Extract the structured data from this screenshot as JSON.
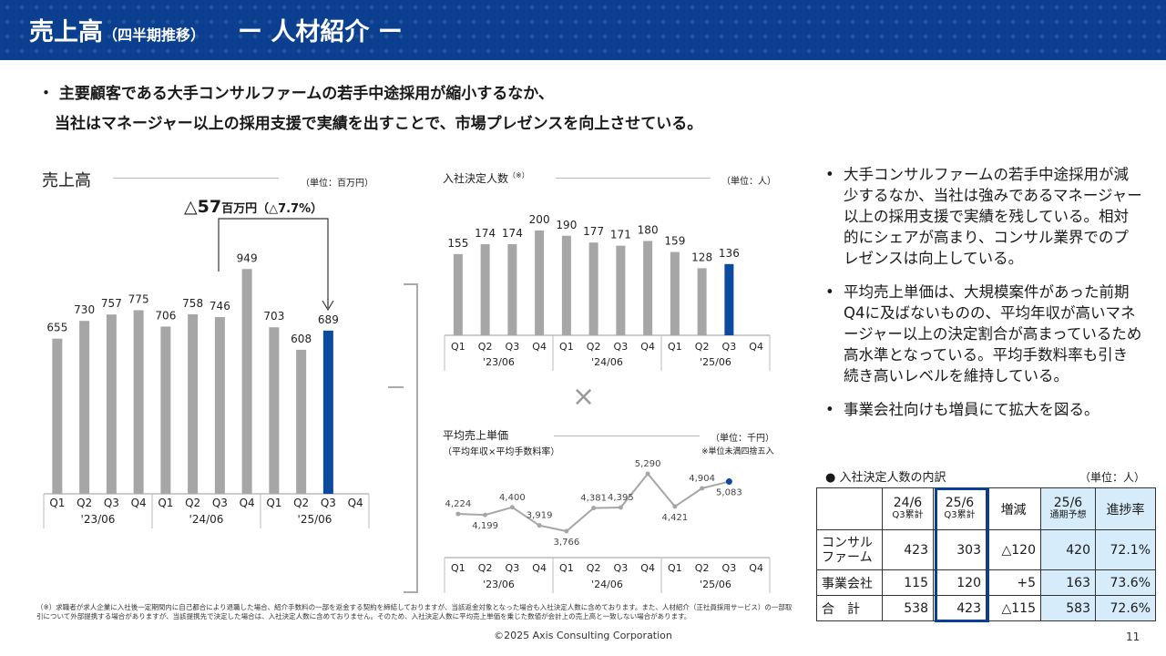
{
  "header": {
    "title": "売上高",
    "subtitle": "（四半期推移）",
    "section": "ー 人材紹介 ー"
  },
  "intro": {
    "line1": "・ 主要顧客である大手コンサルファームの若手中途採用が縮小するなか、",
    "line2": "当社はマネージャー以上の採用支援で実績を出すことで、市場プレゼンスを向上させている。"
  },
  "sales_panel": {
    "title": "売上高",
    "unit": "（単位：百万円）",
    "change_value": "△57",
    "change_unit": "百万円",
    "change_pct": "（△7.7%）"
  },
  "hires_panel": {
    "title": "入社決定人数",
    "note_mark": "（※）",
    "unit": "（単位：人）"
  },
  "multiply_sign": "×",
  "price_panel": {
    "title": "平均売上単価",
    "subtitle": "（平均年収×平均手数料率）",
    "unit": "（単位：千円）",
    "rounding_note": "※単位未満四捨五入"
  },
  "colors": {
    "brand": "#0b3f8f",
    "highlight": "#0c4aa0",
    "bar": "#a6a6a6",
    "table_fill": "#d6ecfb"
  },
  "chart_data": [
    {
      "type": "bar",
      "title": "売上高",
      "categories": [
        "Q1",
        "Q2",
        "Q3",
        "Q4",
        "Q1",
        "Q2",
        "Q3",
        "Q4",
        "Q1",
        "Q2",
        "Q3",
        "Q4"
      ],
      "groups": [
        "'23/06",
        "'24/06",
        "'25/06"
      ],
      "values": [
        655,
        730,
        757,
        775,
        706,
        758,
        746,
        949,
        703,
        608,
        689,
        null
      ],
      "highlight_index": 10,
      "ylim": [
        0,
        1000
      ]
    },
    {
      "type": "bar",
      "title": "入社決定人数",
      "categories": [
        "Q1",
        "Q2",
        "Q3",
        "Q4",
        "Q1",
        "Q2",
        "Q3",
        "Q4",
        "Q1",
        "Q2",
        "Q3",
        "Q4"
      ],
      "groups": [
        "'23/06",
        "'24/06",
        "'25/06"
      ],
      "values": [
        155,
        174,
        174,
        200,
        190,
        177,
        171,
        180,
        159,
        128,
        136,
        null
      ],
      "highlight_index": 10,
      "ylim": [
        0,
        200
      ]
    },
    {
      "type": "line",
      "title": "平均売上単価",
      "categories": [
        "Q1",
        "Q2",
        "Q3",
        "Q4",
        "Q1",
        "Q2",
        "Q3",
        "Q4",
        "Q1",
        "Q2",
        "Q3",
        "Q4"
      ],
      "groups": [
        "'23/06",
        "'24/06",
        "'25/06"
      ],
      "values": [
        4224,
        4199,
        4400,
        3919,
        3766,
        4381,
        4395,
        5290,
        4421,
        4904,
        5083,
        null
      ],
      "labels": [
        "4,224",
        "4,199",
        "4,400",
        "3,919",
        "3,766",
        "4,381",
        "4,395",
        "5,290",
        "4,421",
        "4,904",
        "5,083",
        ""
      ],
      "highlight_index": 10,
      "ylim": [
        3000,
        5600
      ]
    }
  ],
  "bullets": [
    "大手コンサルファームの若手中途採用が減少するなか、当社は強みであるマネージャー以上の採用支援で実績を残している。相対的にシェアが高まり、コンサル業界でのプレゼンスは向上している。",
    "平均売上単価は、大規模案件があった前期Q4に及ばないものの、平均年収が高いマネージャー以上の決定割合が高まっているため高水準となっている。平均手数料率も引き続き高いレベルを維持している。",
    "事業会社向けも増員にて拡大を図る。"
  ],
  "breakdown": {
    "title": "● 入社決定人数の内訳",
    "unit": "（単位：人）",
    "headers": [
      {
        "top": "24/6",
        "bottom": "Q3累計"
      },
      {
        "top": "25/6",
        "bottom": "Q3累計"
      },
      {
        "top": "増減",
        "bottom": ""
      },
      {
        "top": "25/6",
        "bottom": "通期予想"
      },
      {
        "top": "進捗率",
        "bottom": ""
      }
    ],
    "rows": [
      {
        "name1": "コンサル",
        "name2": "ファーム",
        "cells": [
          "423",
          "303",
          "△120",
          "420",
          "72.1%"
        ]
      },
      {
        "name1": "事業会社",
        "name2": "",
        "cells": [
          "115",
          "120",
          "+5",
          "163",
          "73.6%"
        ]
      },
      {
        "name1": "合　計",
        "name2": "",
        "cells": [
          "538",
          "423",
          "△115",
          "583",
          "72.6%"
        ]
      }
    ]
  },
  "footnote": "（※）求職者が求人企業に入社後一定期間内に自己都合により退職した場合、紹介手数料の一部を返金する契約を締結しておりますが、当該返金対象となった場合も入社決定人数に含めております。また、人材紹介（正社員採用サービス）の一部取引について外部提携する場合がありますが、当該提携先で決定した場合は、入社決定人数に含めておりません。そのため、入社決定人数に平均売上単価を乗じた数値が会計上の売上高と一致しない場合があります。",
  "copyright": "©2025 Axis Consulting Corporation",
  "page_number": "11"
}
